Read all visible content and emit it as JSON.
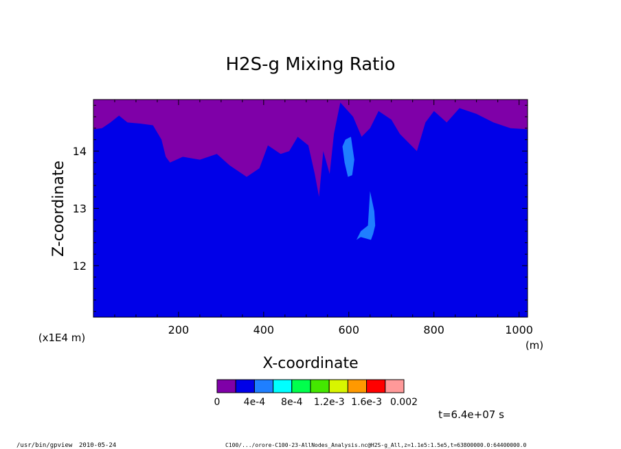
{
  "chart_data": {
    "type": "heatmap",
    "title": "H2S-g Mixing Ratio",
    "xlabel": "X-coordinate",
    "ylabel": "Z-coordinate",
    "x_unit": "(m)",
    "y_unit": "(x1E4 m)",
    "xlim": [
      0,
      1020
    ],
    "ylim": [
      11.1,
      14.9
    ],
    "x_ticks": [
      200,
      400,
      600,
      800,
      1000
    ],
    "y_ticks": [
      12,
      13,
      14
    ],
    "time_label": "t=6.4e+07 s",
    "colorbar": {
      "colors": [
        "#7f00a8",
        "#0000e8",
        "#1f7fff",
        "#00ffff",
        "#00ff4c",
        "#44e800",
        "#d8f500",
        "#ff9900",
        "#ff0000",
        "#ff9999"
      ],
      "tick_labels": [
        "0",
        "4e-4",
        "8e-4",
        "1.2e-3",
        "1.6e-3",
        "0.002"
      ]
    },
    "background_level_color": "#0000e8",
    "top_level_color": "#7f00a8",
    "purple_boundary": [
      [
        0,
        14.38
      ],
      [
        20,
        14.4
      ],
      [
        40,
        14.5
      ],
      [
        60,
        14.62
      ],
      [
        80,
        14.5
      ],
      [
        110,
        14.48
      ],
      [
        140,
        14.45
      ],
      [
        160,
        14.2
      ],
      [
        170,
        13.9
      ],
      [
        180,
        13.8
      ],
      [
        210,
        13.9
      ],
      [
        250,
        13.85
      ],
      [
        290,
        13.95
      ],
      [
        320,
        13.75
      ],
      [
        360,
        13.55
      ],
      [
        390,
        13.7
      ],
      [
        410,
        14.1
      ],
      [
        440,
        13.95
      ],
      [
        460,
        14.0
      ],
      [
        480,
        14.25
      ],
      [
        505,
        14.1
      ],
      [
        520,
        13.6
      ],
      [
        530,
        13.2
      ],
      [
        540,
        14.0
      ],
      [
        555,
        13.6
      ],
      [
        565,
        14.3
      ],
      [
        580,
        14.85
      ],
      [
        610,
        14.6
      ],
      [
        630,
        14.25
      ],
      [
        650,
        14.4
      ],
      [
        670,
        14.7
      ],
      [
        700,
        14.55
      ],
      [
        720,
        14.3
      ],
      [
        760,
        14.0
      ],
      [
        780,
        14.5
      ],
      [
        800,
        14.7
      ],
      [
        830,
        14.5
      ],
      [
        860,
        14.75
      ],
      [
        900,
        14.65
      ],
      [
        940,
        14.5
      ],
      [
        980,
        14.4
      ],
      [
        1020,
        14.38
      ]
    ],
    "light_blue_regions": [
      {
        "x": [
          585,
          592,
          605,
          613,
          608,
          598,
          590
        ],
        "z": [
          14.08,
          14.2,
          14.25,
          13.85,
          13.58,
          13.55,
          13.8
        ]
      },
      {
        "x": [
          618,
          628,
          645,
          650,
          660,
          662,
          657,
          652,
          628
        ],
        "z": [
          12.45,
          12.6,
          12.7,
          13.3,
          12.95,
          12.7,
          12.55,
          12.45,
          12.5
        ]
      }
    ]
  },
  "footer": {
    "program": "/usr/bin/gpview",
    "date": "2010-05-24",
    "source": "C100/.../orore-C100-23-AllNodes_Analysis.nc@H2S-g_All,z=1.1e5:1.5e5,t=63800000.0:64400000.0"
  }
}
